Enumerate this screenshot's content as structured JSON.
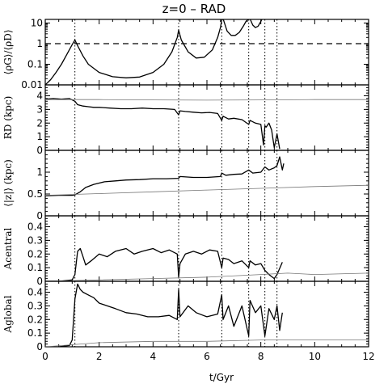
{
  "figure": {
    "title": "z=0  –  RAD",
    "xlabel": "t/Gyr"
  },
  "chart_data": {
    "type": "line",
    "title": "z=0  –  RAD",
    "xlabel": "t/Gyr",
    "xlim": [
      0,
      12
    ],
    "xticks": [
      "0",
      "2",
      "4",
      "6",
      "8",
      "10",
      "12"
    ],
    "event_times": [
      1.1,
      4.95,
      6.55,
      7.55,
      8.15,
      8.6
    ],
    "panels": [
      {
        "ylabel": "⟨ρG⟩/⟨ρD⟩",
        "yscale": "log",
        "ylim": [
          0.01,
          15
        ],
        "yticks": [
          "0.01",
          "0.1",
          "1",
          "10"
        ],
        "reference_line": 1,
        "series": [
          {
            "style": "thick",
            "x": [
              0.0,
              0.2,
              0.4,
              0.6,
              0.8,
              1.0,
              1.1,
              1.2,
              1.4,
              1.6,
              2.0,
              2.5,
              3.0,
              3.5,
              4.0,
              4.4,
              4.7,
              4.9,
              4.95,
              5.05,
              5.3,
              5.6,
              5.9,
              6.2,
              6.4,
              6.5,
              6.55,
              6.6,
              6.75,
              6.9,
              7.05,
              7.2,
              7.35,
              7.45,
              7.55,
              7.6,
              7.7,
              7.8,
              7.9,
              8.0,
              8.05
            ],
            "y": [
              0.01,
              0.018,
              0.04,
              0.1,
              0.3,
              0.9,
              1.5,
              0.8,
              0.25,
              0.1,
              0.04,
              0.025,
              0.022,
              0.024,
              0.04,
              0.1,
              0.4,
              2.0,
              4.5,
              1.5,
              0.4,
              0.2,
              0.22,
              0.5,
              2.0,
              6.0,
              14.0,
              16.0,
              4.0,
              2.5,
              2.5,
              3.5,
              7.0,
              12.0,
              16.0,
              16.0,
              8.0,
              6.0,
              7.0,
              12.0,
              16.0
            ]
          }
        ]
      },
      {
        "ylabel": "RD (kpc)",
        "yscale": "linear",
        "ylim": [
          0,
          4.8
        ],
        "yticks": [
          "0",
          "1",
          "2",
          "3",
          "4"
        ],
        "series": [
          {
            "style": "thick",
            "x": [
              0.0,
              0.3,
              0.6,
              0.9,
              1.1,
              1.2,
              1.4,
              1.6,
              1.8,
              2.0,
              2.4,
              2.8,
              3.2,
              3.6,
              4.0,
              4.4,
              4.8,
              4.95,
              5.0,
              5.2,
              5.5,
              5.8,
              6.1,
              6.4,
              6.55,
              6.6,
              6.8,
              7.0,
              7.3,
              7.55,
              7.6,
              7.8,
              8.0,
              8.1,
              8.15,
              8.2,
              8.3,
              8.4,
              8.5,
              8.6,
              8.7
            ],
            "y": [
              3.75,
              3.8,
              3.75,
              3.8,
              3.6,
              3.35,
              3.25,
              3.2,
              3.15,
              3.15,
              3.1,
              3.05,
              3.05,
              3.1,
              3.05,
              3.05,
              3.0,
              2.6,
              2.9,
              2.85,
              2.8,
              2.75,
              2.78,
              2.7,
              2.2,
              2.5,
              2.3,
              2.35,
              2.25,
              1.9,
              2.2,
              2.0,
              1.9,
              0.4,
              1.8,
              1.7,
              2.0,
              1.5,
              0.2,
              1.2,
              0.1
            ]
          },
          {
            "style": "thin",
            "x": [
              0.0,
              2.0,
              4.0,
              6.0,
              8.0,
              10.0,
              12.0
            ],
            "y": [
              3.72,
              3.72,
              3.7,
              3.68,
              3.7,
              3.72,
              3.72
            ]
          }
        ]
      },
      {
        "ylabel": "⟨|z|⟩ (kpc)",
        "yscale": "linear",
        "ylim": [
          0,
          1.5
        ],
        "yticks": [
          "0",
          "0.5",
          "1"
        ],
        "series": [
          {
            "style": "thick",
            "x": [
              0.0,
              0.5,
              1.0,
              1.1,
              1.3,
              1.5,
              1.8,
              2.2,
              2.6,
              3.0,
              3.5,
              4.0,
              4.5,
              4.95,
              5.0,
              5.5,
              6.0,
              6.5,
              6.55,
              6.7,
              7.0,
              7.3,
              7.55,
              7.7,
              8.0,
              8.15,
              8.3,
              8.5,
              8.6,
              8.7,
              8.8,
              8.85
            ],
            "y": [
              0.46,
              0.47,
              0.47,
              0.48,
              0.55,
              0.65,
              0.72,
              0.78,
              0.8,
              0.82,
              0.83,
              0.85,
              0.85,
              0.86,
              0.9,
              0.88,
              0.88,
              0.9,
              0.98,
              0.93,
              0.95,
              0.96,
              1.05,
              0.98,
              1.0,
              1.12,
              1.05,
              1.1,
              1.15,
              1.35,
              1.05,
              1.2
            ]
          },
          {
            "style": "thin",
            "x": [
              0.0,
              2.0,
              4.0,
              6.0,
              8.0,
              10.0,
              12.0
            ],
            "y": [
              0.47,
              0.51,
              0.55,
              0.59,
              0.63,
              0.67,
              0.7
            ]
          }
        ]
      },
      {
        "ylabel": "Acentral",
        "yscale": "linear",
        "ylim": [
          0,
          0.48
        ],
        "yticks": [
          "0",
          "0.1",
          "0.2",
          "0.3",
          "0.4"
        ],
        "series": [
          {
            "style": "thick",
            "x": [
              0.0,
              0.5,
              1.0,
              1.1,
              1.2,
              1.3,
              1.4,
              1.5,
              1.7,
              2.0,
              2.3,
              2.6,
              3.0,
              3.3,
              3.6,
              4.0,
              4.3,
              4.6,
              4.9,
              4.95,
              5.0,
              5.2,
              5.5,
              5.8,
              6.1,
              6.4,
              6.55,
              6.6,
              6.8,
              7.0,
              7.3,
              7.55,
              7.6,
              7.8,
              8.0,
              8.15,
              8.3,
              8.5,
              8.6,
              8.8
            ],
            "y": [
              0.0,
              0.0,
              0.01,
              0.05,
              0.22,
              0.24,
              0.18,
              0.12,
              0.15,
              0.2,
              0.18,
              0.22,
              0.24,
              0.2,
              0.22,
              0.24,
              0.21,
              0.23,
              0.2,
              0.03,
              0.13,
              0.2,
              0.22,
              0.2,
              0.23,
              0.22,
              0.1,
              0.17,
              0.16,
              0.13,
              0.15,
              0.1,
              0.15,
              0.12,
              0.13,
              0.08,
              0.05,
              0.02,
              0.05,
              0.14
            ]
          },
          {
            "style": "thin",
            "x": [
              0.0,
              2.0,
              4.0,
              6.0,
              8.0,
              9.0,
              10.0,
              12.0
            ],
            "y": [
              0.0,
              0.01,
              0.02,
              0.03,
              0.05,
              0.06,
              0.05,
              0.06
            ]
          }
        ]
      },
      {
        "ylabel": "Aglobal",
        "yscale": "linear",
        "ylim": [
          0,
          0.48
        ],
        "yticks": [
          "0",
          "0.1",
          "0.2",
          "0.3",
          "0.4"
        ],
        "series": [
          {
            "style": "thick",
            "x": [
              0.0,
              0.5,
              0.9,
              1.0,
              1.1,
              1.2,
              1.3,
              1.4,
              1.6,
              1.8,
              2.0,
              2.3,
              2.6,
              3.0,
              3.4,
              3.8,
              4.2,
              4.6,
              4.9,
              4.95,
              5.0,
              5.3,
              5.6,
              6.0,
              6.4,
              6.55,
              6.6,
              6.8,
              7.0,
              7.3,
              7.55,
              7.6,
              7.8,
              8.0,
              8.15,
              8.3,
              8.5,
              8.6,
              8.7,
              8.8
            ],
            "y": [
              0.0,
              0.0,
              0.01,
              0.05,
              0.35,
              0.46,
              0.42,
              0.4,
              0.38,
              0.36,
              0.32,
              0.3,
              0.28,
              0.25,
              0.24,
              0.22,
              0.22,
              0.23,
              0.2,
              0.42,
              0.22,
              0.3,
              0.25,
              0.22,
              0.24,
              0.38,
              0.2,
              0.3,
              0.15,
              0.3,
              0.08,
              0.34,
              0.25,
              0.3,
              0.08,
              0.28,
              0.2,
              0.3,
              0.12,
              0.25
            ]
          },
          {
            "style": "thin",
            "x": [
              0.0,
              2.0,
              4.0,
              6.0,
              8.0,
              10.0,
              12.0
            ],
            "y": [
              0.0,
              0.03,
              0.04,
              0.04,
              0.05,
              0.05,
              0.05
            ]
          }
        ]
      }
    ]
  }
}
